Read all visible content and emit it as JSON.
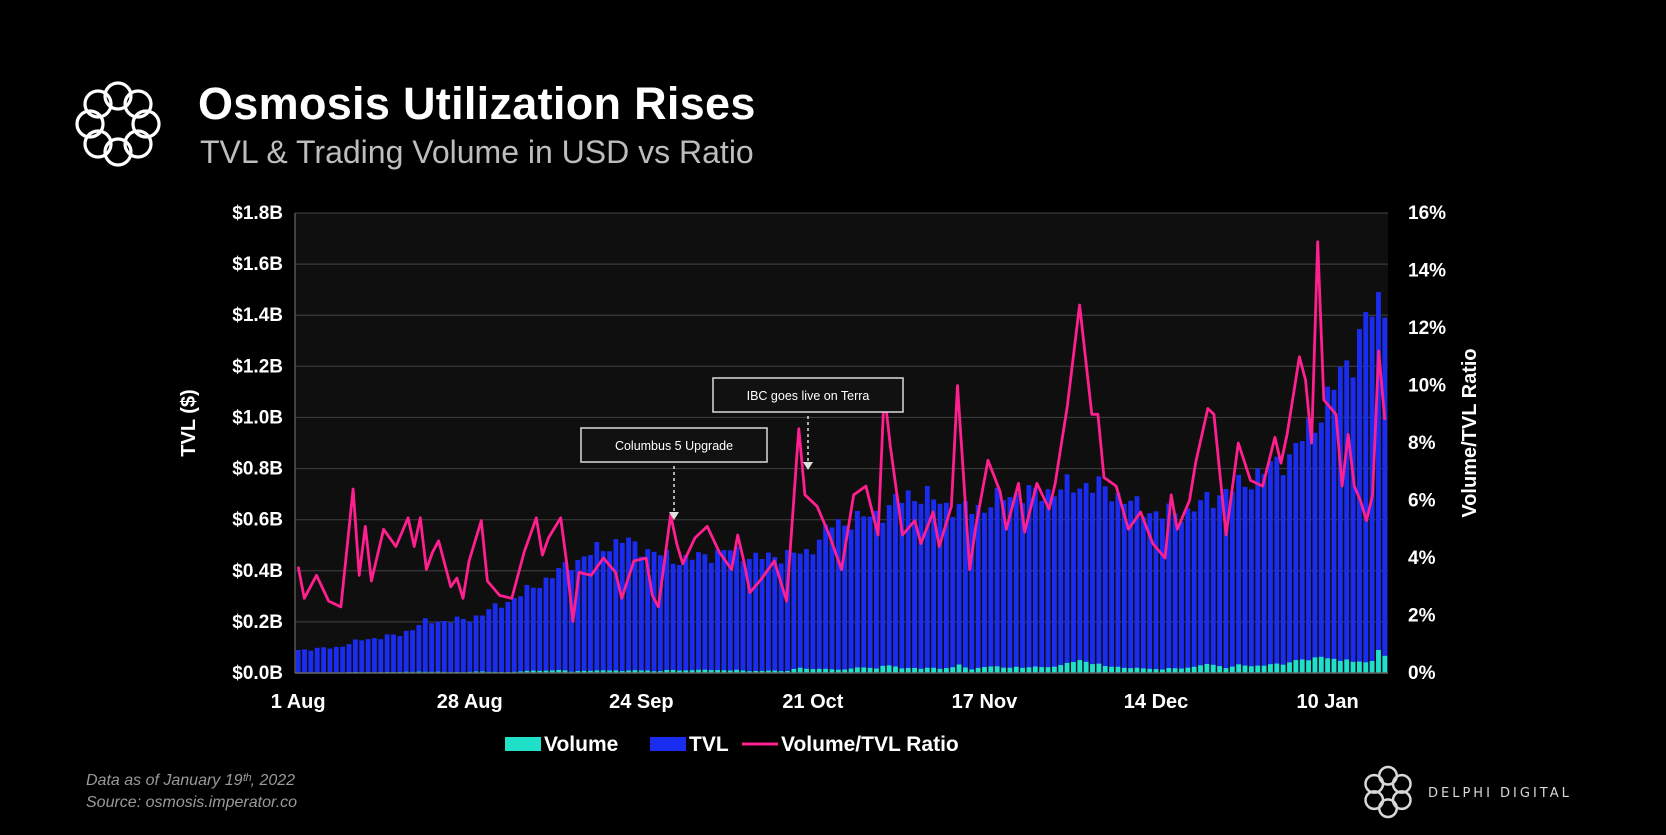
{
  "header": {
    "title": "Osmosis Utilization Rises",
    "subtitle": "TVL & Trading Volume in USD vs Ratio"
  },
  "footer": {
    "data_note": "Data as of January 19ᵗʰ, 2022",
    "source": "Source: osmosis.imperator.co",
    "brand": "DELPHI DIGITAL"
  },
  "colors": {
    "background": "#000000",
    "plot_bg": "#0f0f0f",
    "volume": "#1fe0c8",
    "tvl": "#1a2cf0",
    "ratio": "#ff1f8f",
    "grid": "#3a3a3a",
    "text": "#ffffff"
  },
  "chart_data": {
    "type": "bar",
    "title": "Osmosis Utilization Rises",
    "subtitle": "TVL & Trading Volume in USD vs Ratio",
    "ylabel": "TVL ($)",
    "y2label": "Volume/TVL Ratio",
    "ylim": [
      0,
      1.8
    ],
    "y2lim": [
      0,
      16
    ],
    "yticks": [
      "$0.0B",
      "$0.2B",
      "$0.4B",
      "$0.6B",
      "$0.8B",
      "$1.0B",
      "$1.2B",
      "$1.4B",
      "$1.6B",
      "$1.8B"
    ],
    "y2ticks": [
      "0%",
      "2%",
      "4%",
      "6%",
      "8%",
      "10%",
      "12%",
      "14%",
      "16%"
    ],
    "xticks": [
      {
        "label": "1 Aug",
        "day": 0
      },
      {
        "label": "28 Aug",
        "day": 27
      },
      {
        "label": "24 Sep",
        "day": 54
      },
      {
        "label": "21 Oct",
        "day": 81
      },
      {
        "label": "17 Nov",
        "day": 108
      },
      {
        "label": "14 Dec",
        "day": 135
      },
      {
        "label": "10 Jan",
        "day": 162
      }
    ],
    "days": 171,
    "legend": [
      "Volume",
      "TVL",
      "Volume/TVL Ratio"
    ],
    "legend_position": "bottom",
    "tvl_anchors": [
      [
        0,
        0.09
      ],
      [
        6,
        0.1
      ],
      [
        10,
        0.13
      ],
      [
        16,
        0.15
      ],
      [
        20,
        0.2
      ],
      [
        27,
        0.21
      ],
      [
        33,
        0.28
      ],
      [
        38,
        0.35
      ],
      [
        43,
        0.43
      ],
      [
        47,
        0.48
      ],
      [
        51,
        0.52
      ],
      [
        56,
        0.47
      ],
      [
        60,
        0.44
      ],
      [
        64,
        0.46
      ],
      [
        68,
        0.48
      ],
      [
        72,
        0.45
      ],
      [
        76,
        0.46
      ],
      [
        80,
        0.47
      ],
      [
        84,
        0.58
      ],
      [
        88,
        0.6
      ],
      [
        92,
        0.63
      ],
      [
        96,
        0.7
      ],
      [
        100,
        0.68
      ],
      [
        104,
        0.64
      ],
      [
        108,
        0.65
      ],
      [
        112,
        0.7
      ],
      [
        116,
        0.7
      ],
      [
        120,
        0.72
      ],
      [
        124,
        0.74
      ],
      [
        128,
        0.71
      ],
      [
        132,
        0.65
      ],
      [
        136,
        0.62
      ],
      [
        140,
        0.63
      ],
      [
        144,
        0.69
      ],
      [
        148,
        0.73
      ],
      [
        152,
        0.79
      ],
      [
        156,
        0.85
      ],
      [
        160,
        0.98
      ],
      [
        163,
        1.12
      ],
      [
        166,
        1.25
      ],
      [
        168,
        1.38
      ],
      [
        170,
        1.43
      ],
      [
        171,
        1.47
      ]
    ],
    "ratio_anchors": [
      [
        0,
        3.7
      ],
      [
        1,
        2.6
      ],
      [
        3,
        3.4
      ],
      [
        5,
        2.5
      ],
      [
        7,
        2.3
      ],
      [
        9,
        6.4
      ],
      [
        10,
        3.4
      ],
      [
        11,
        5.1
      ],
      [
        12,
        3.2
      ],
      [
        14,
        5
      ],
      [
        16,
        4.4
      ],
      [
        18,
        5.4
      ],
      [
        19,
        4.4
      ],
      [
        20,
        5.4
      ],
      [
        21,
        3.6
      ],
      [
        22,
        4.2
      ],
      [
        23,
        4.6
      ],
      [
        25,
        3
      ],
      [
        26,
        3.3
      ],
      [
        27,
        2.6
      ],
      [
        28,
        3.9
      ],
      [
        30,
        5.3
      ],
      [
        31,
        3.2
      ],
      [
        33,
        2.7
      ],
      [
        35,
        2.6
      ],
      [
        37,
        4.2
      ],
      [
        39,
        5.4
      ],
      [
        40,
        4.1
      ],
      [
        41,
        4.7
      ],
      [
        43,
        5.4
      ],
      [
        44,
        3.8
      ],
      [
        45,
        1.8
      ],
      [
        46,
        3.5
      ],
      [
        48,
        3.4
      ],
      [
        50,
        4
      ],
      [
        52,
        3.5
      ],
      [
        53,
        2.6
      ],
      [
        55,
        3.9
      ],
      [
        57,
        4
      ],
      [
        58,
        2.7
      ],
      [
        59,
        2.3
      ],
      [
        61,
        5.5
      ],
      [
        62,
        4.5
      ],
      [
        63,
        3.8
      ],
      [
        65,
        4.7
      ],
      [
        67,
        5.1
      ],
      [
        69,
        4.2
      ],
      [
        71,
        3.6
      ],
      [
        72,
        4.8
      ],
      [
        73,
        3.9
      ],
      [
        74,
        2.8
      ],
      [
        76,
        3.3
      ],
      [
        78,
        3.9
      ],
      [
        80,
        2.5
      ],
      [
        82,
        8.5
      ],
      [
        83,
        6.2
      ],
      [
        85,
        5.8
      ],
      [
        87,
        4.8
      ],
      [
        89,
        3.6
      ],
      [
        91,
        6.2
      ],
      [
        93,
        6.5
      ],
      [
        95,
        4.8
      ],
      [
        96,
        9.8
      ],
      [
        97,
        7.9
      ],
      [
        99,
        4.8
      ],
      [
        101,
        5.3
      ],
      [
        102,
        4.5
      ],
      [
        104,
        5.6
      ],
      [
        105,
        4.4
      ],
      [
        107,
        5.8
      ],
      [
        108,
        10
      ],
      [
        110,
        3.6
      ],
      [
        111,
        5.1
      ],
      [
        113,
        7.4
      ],
      [
        115,
        6.3
      ],
      [
        116,
        5
      ],
      [
        118,
        6.6
      ],
      [
        119,
        4.9
      ],
      [
        121,
        6.6
      ],
      [
        123,
        5.7
      ],
      [
        124,
        6.6
      ],
      [
        126,
        9.3
      ],
      [
        128,
        12.8
      ],
      [
        130,
        9
      ],
      [
        131,
        9
      ],
      [
        132,
        6.8
      ],
      [
        134,
        6.5
      ],
      [
        136,
        5
      ],
      [
        138,
        5.6
      ],
      [
        140,
        4.5
      ],
      [
        142,
        4
      ],
      [
        143,
        6.2
      ],
      [
        144,
        5
      ],
      [
        146,
        6
      ],
      [
        147,
        7.3
      ],
      [
        149,
        9.2
      ],
      [
        150,
        9
      ],
      [
        152,
        4.8
      ],
      [
        154,
        8
      ],
      [
        156,
        6.7
      ],
      [
        158,
        6.5
      ],
      [
        160,
        8.2
      ],
      [
        161,
        7.3
      ],
      [
        162,
        8.3
      ],
      [
        164,
        11
      ],
      [
        165,
        10.2
      ],
      [
        166,
        8
      ],
      [
        167,
        15
      ],
      [
        168,
        9.5
      ],
      [
        170,
        9
      ],
      [
        171,
        6.5
      ],
      [
        172,
        8.3
      ],
      [
        173,
        6.5
      ],
      [
        174,
        6
      ],
      [
        175,
        5.3
      ],
      [
        176,
        6.2
      ],
      [
        177,
        11.2
      ],
      [
        178,
        8.8
      ]
    ],
    "ratio_xmax": 178,
    "annotations": [
      {
        "text": "Columbus 5 Upgrade",
        "day": 58
      },
      {
        "text": "IBC goes live on Terra",
        "day": 80
      }
    ]
  }
}
